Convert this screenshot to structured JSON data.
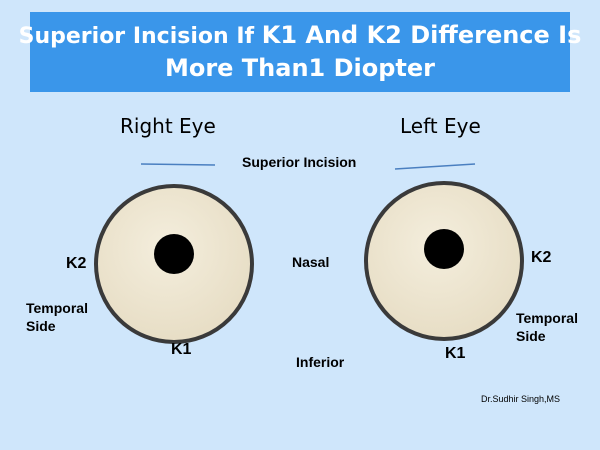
{
  "title": {
    "line1_part1": "Superior Incision If ",
    "line1_part2": "K1 And K2 Difference Is",
    "line2": "More Than1 Diopter"
  },
  "right_eye": {
    "heading": "Right Eye",
    "k2": "K2",
    "k1": "K1",
    "temporal": "Temporal",
    "side": "Side"
  },
  "left_eye": {
    "heading": "Left Eye",
    "k2": "K2",
    "k1": "K1",
    "temporal": "Temporal",
    "side": "Side"
  },
  "center_labels": {
    "superior": "Superior Incision",
    "nasal": "Nasal",
    "inferior": "Inferior"
  },
  "credit": "Dr.Sudhir Singh,MS",
  "colors": {
    "background": "#cfe6fb",
    "title_bg": "#3a96ea",
    "eye_fill": "#ede5d0",
    "eye_stroke": "#3a3a3a",
    "pupil": "#000000",
    "incision_line": "#4a7fc0"
  }
}
